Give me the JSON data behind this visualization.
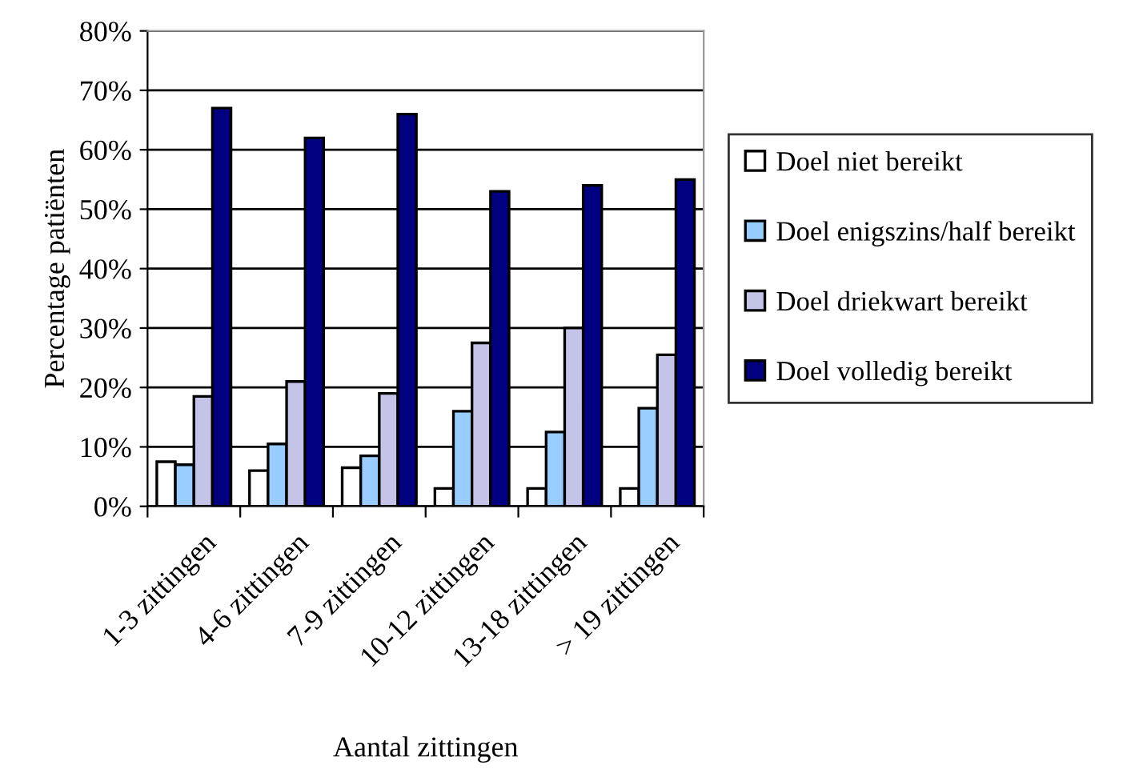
{
  "chart_data": {
    "type": "bar",
    "xlabel": "Aantal zittingen",
    "ylabel": "Percentage patiënten",
    "categories": [
      "1-3 zittingen",
      "4-6 zittingen",
      "7-9 zittingen",
      "10-12 zittingen",
      "13-18 zittingen",
      "> 19 zittingen"
    ],
    "series": [
      {
        "name": "Doel niet bereikt",
        "color": "#ffffff",
        "values": [
          7.5,
          6,
          6.5,
          3,
          3,
          3
        ]
      },
      {
        "name": "Doel enigszins/half bereikt",
        "color": "#99ccff",
        "values": [
          7,
          10.5,
          8.5,
          16,
          12.5,
          16.5
        ]
      },
      {
        "name": "Doel driekwart bereikt",
        "color": "#c4c4e8",
        "values": [
          18.5,
          21,
          19,
          27.5,
          30,
          25.5
        ]
      },
      {
        "name": "Doel volledig bereikt",
        "color": "#000080",
        "values": [
          67,
          62,
          66,
          53,
          54,
          55
        ]
      }
    ],
    "ylim": [
      0,
      80
    ],
    "yticks": [
      {
        "value": 0,
        "label": "0%"
      },
      {
        "value": 10,
        "label": "10%"
      },
      {
        "value": 20,
        "label": "20%"
      },
      {
        "value": 30,
        "label": "30%"
      },
      {
        "value": 40,
        "label": "40%"
      },
      {
        "value": 50,
        "label": "50%"
      },
      {
        "value": 60,
        "label": "60%"
      },
      {
        "value": 70,
        "label": "70%"
      },
      {
        "value": 80,
        "label": "80%"
      }
    ],
    "grid": "y",
    "legend": "right"
  }
}
